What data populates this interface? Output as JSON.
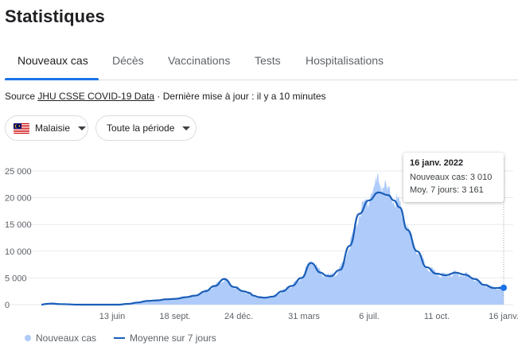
{
  "page": {
    "title": "Statistiques"
  },
  "tabs": [
    {
      "label": "Nouveaux cas",
      "active": true
    },
    {
      "label": "Décès"
    },
    {
      "label": "Vaccinations"
    },
    {
      "label": "Tests"
    },
    {
      "label": "Hospitalisations"
    }
  ],
  "source": {
    "prefix": "Source ",
    "link": "JHU CSSE COVID-19 Data",
    "suffix": " · Dernière mise à jour : il y a 10 minutes"
  },
  "filters": {
    "country": "Malaisie",
    "country_flag_icon": "malaysia-flag-icon",
    "period": "Toute la période"
  },
  "colors": {
    "accent": "#1a73e8",
    "area": "#aecbfa",
    "line": "#1a5eb8"
  },
  "tooltip": {
    "date": "16 janv. 2022",
    "cases": "Nouveaux cas: 3 010",
    "avg": "Moy. 7 jours: 3 161"
  },
  "legend": {
    "series1": "Nouveaux cas",
    "series2": "Moyenne sur 7 jours"
  },
  "chart_data": {
    "type": "area",
    "ylim": [
      0,
      25000
    ],
    "yticks": [
      0,
      5000,
      10000,
      15000,
      20000,
      25000
    ],
    "ytick_labels": [
      "0",
      "5 000",
      "10 000",
      "15 000",
      "20 000",
      "25 000"
    ],
    "xtick_labels": [
      "13 juin",
      "18 sept.",
      "24 déc.",
      "31 mars",
      "6 juil.",
      "11 oct.",
      "16 janv."
    ],
    "x": [
      0,
      0.3,
      0.5,
      1,
      2,
      3,
      3.5,
      4,
      4.5,
      5,
      5.5,
      6,
      6.5,
      7,
      7.5,
      8,
      8.5,
      9,
      9.5,
      10,
      10.5,
      10.8,
      11,
      11.3,
      11.6,
      12,
      12.5,
      13,
      13.5,
      14,
      14.5,
      14.8,
      15,
      15.5,
      16,
      16.5,
      17,
      17.5,
      18,
      18.3,
      18.6,
      19,
      19.5,
      20,
      20.5,
      21,
      21.5,
      22,
      22.5,
      23,
      23.5,
      24
    ],
    "series": [
      {
        "name": "Moyenne sur 7 jours",
        "values": [
          0,
          150,
          200,
          100,
          0,
          0,
          0,
          0,
          150,
          400,
          700,
          800,
          1000,
          1100,
          1400,
          1700,
          2500,
          3500,
          4800,
          3300,
          2500,
          2200,
          1700,
          1400,
          1300,
          1500,
          2500,
          3500,
          5000,
          7800,
          6000,
          5400,
          5300,
          6500,
          11000,
          17000,
          19500,
          21000,
          20500,
          19500,
          18200,
          14000,
          10000,
          7000,
          5800,
          5500,
          6000,
          5600,
          4800,
          3700,
          3100,
          3161
        ]
      },
      {
        "name": "Nouveaux cas",
        "values": [
          0,
          150,
          200,
          100,
          0,
          0,
          0,
          0,
          150,
          400,
          700,
          800,
          1000,
          1100,
          1400,
          1700,
          2500,
          3500,
          4800,
          3300,
          2500,
          2200,
          1700,
          1400,
          1300,
          1500,
          2500,
          3500,
          5000,
          8500,
          6000,
          5400,
          5300,
          6500,
          11000,
          17000,
          20000,
          23500,
          21000,
          20000,
          18500,
          14000,
          10000,
          7000,
          5800,
          5500,
          6000,
          5600,
          4800,
          3700,
          3100,
          3010
        ]
      }
    ],
    "highlight_x": 24,
    "grid": true
  }
}
